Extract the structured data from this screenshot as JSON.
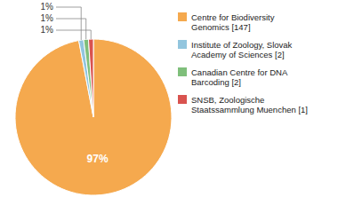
{
  "chart_data": {
    "type": "pie",
    "categories": [
      "Centre for Biodiversity\nGenomics [147]",
      "Institute of Zoology, Slovak\nAcademy of Sciences [2]",
      "Canadian Centre for DNA\nBarcoding [2]",
      "SNSB, Zoologische\nStaatssammlung Muenchen [1]"
    ],
    "values": [
      97,
      1,
      1,
      1
    ],
    "value_labels": [
      "97%",
      "1%",
      "1%",
      "1%"
    ],
    "colors": [
      "#f5a94e",
      "#92c5de",
      "#7fbf7b",
      "#d9534f"
    ],
    "data_labels": true,
    "legend": "right"
  }
}
